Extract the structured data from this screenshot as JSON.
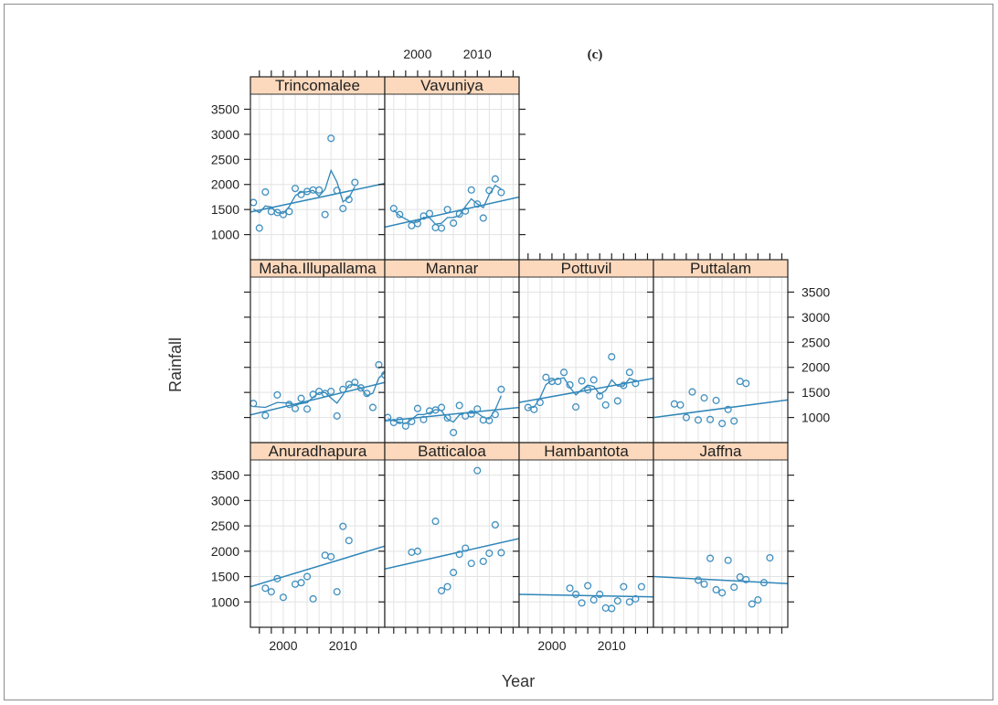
{
  "chart_data": {
    "type": "scatter",
    "figure_label": "(c)",
    "xlabel": "Year",
    "ylabel": "Rainfall",
    "x_ticks": [
      2000,
      2010
    ],
    "y_ticks": [
      1000,
      1500,
      2000,
      2500,
      3000,
      3500
    ],
    "xlim": [
      1994.5,
      2017
    ],
    "ylim": [
      500,
      3800
    ],
    "colors": {
      "points": "#3f8fbf",
      "line": "#2f86b8",
      "strip": "#fcd9bd",
      "grid": "#e3e3e3"
    },
    "panels": [
      {
        "name": "Anuradhapura",
        "points": [
          [
            1997,
            1270
          ],
          [
            1998,
            1200
          ],
          [
            1999,
            1460
          ],
          [
            2000,
            1090
          ],
          [
            2002,
            1350
          ],
          [
            2003,
            1380
          ],
          [
            2004,
            1500
          ],
          [
            2005,
            1060
          ],
          [
            2007,
            1920
          ],
          [
            2008,
            1890
          ],
          [
            2009,
            1200
          ],
          [
            2010,
            2490
          ],
          [
            2011,
            2210
          ]
        ],
        "trend": [
          1300,
          2100
        ]
      },
      {
        "name": "Batticaloa",
        "points": [
          [
            1999,
            1980
          ],
          [
            2000,
            2000
          ],
          [
            2003,
            2590
          ],
          [
            2004,
            1220
          ],
          [
            2005,
            1300
          ],
          [
            2006,
            1580
          ],
          [
            2007,
            1940
          ],
          [
            2008,
            2060
          ],
          [
            2009,
            1760
          ],
          [
            2010,
            3590
          ],
          [
            2011,
            1800
          ],
          [
            2012,
            1960
          ],
          [
            2013,
            2520
          ],
          [
            2014,
            1970
          ]
        ],
        "trend": [
          1650,
          2250
        ]
      },
      {
        "name": "Hambantota",
        "points": [
          [
            2003,
            1270
          ],
          [
            2004,
            1150
          ],
          [
            2005,
            980
          ],
          [
            2006,
            1320
          ],
          [
            2007,
            1040
          ],
          [
            2008,
            1150
          ],
          [
            2009,
            880
          ],
          [
            2010,
            870
          ],
          [
            2011,
            1020
          ],
          [
            2012,
            1300
          ],
          [
            2013,
            1000
          ],
          [
            2014,
            1060
          ],
          [
            2015,
            1300
          ]
        ],
        "trend": [
          1150,
          1100
        ]
      },
      {
        "name": "Jaffna",
        "points": [
          [
            2002,
            1430
          ],
          [
            2003,
            1350
          ],
          [
            2004,
            1860
          ],
          [
            2005,
            1240
          ],
          [
            2006,
            1180
          ],
          [
            2007,
            1820
          ],
          [
            2008,
            1290
          ],
          [
            2009,
            1490
          ],
          [
            2010,
            1440
          ],
          [
            2011,
            960
          ],
          [
            2012,
            1040
          ],
          [
            2013,
            1380
          ],
          [
            2014,
            1870
          ]
        ],
        "trend": [
          1500,
          1360
        ]
      },
      {
        "name": "Maha.Illupallama",
        "points": [
          [
            1995,
            1280
          ],
          [
            1997,
            1040
          ],
          [
            1999,
            1450
          ],
          [
            2001,
            1260
          ],
          [
            2002,
            1180
          ],
          [
            2003,
            1380
          ],
          [
            2004,
            1170
          ],
          [
            2005,
            1460
          ],
          [
            2006,
            1520
          ],
          [
            2007,
            1480
          ],
          [
            2008,
            1520
          ],
          [
            2009,
            1030
          ],
          [
            2010,
            1560
          ],
          [
            2011,
            1660
          ],
          [
            2012,
            1700
          ],
          [
            2013,
            1590
          ],
          [
            2014,
            1480
          ],
          [
            2015,
            1200
          ],
          [
            2016,
            2050
          ],
          [
            2017,
            1850
          ]
        ],
        "trend": [
          1050,
          1700
        ]
      },
      {
        "name": "Mannar",
        "points": [
          [
            1995,
            1000
          ],
          [
            1996,
            900
          ],
          [
            1997,
            940
          ],
          [
            1998,
            830
          ],
          [
            1999,
            920
          ],
          [
            2000,
            1180
          ],
          [
            2001,
            960
          ],
          [
            2002,
            1130
          ],
          [
            2003,
            1150
          ],
          [
            2004,
            1200
          ],
          [
            2005,
            990
          ],
          [
            2006,
            700
          ],
          [
            2007,
            1240
          ],
          [
            2008,
            1030
          ],
          [
            2009,
            1070
          ],
          [
            2010,
            1170
          ],
          [
            2011,
            950
          ],
          [
            2012,
            940
          ],
          [
            2013,
            1060
          ],
          [
            2014,
            1560
          ]
        ],
        "trend": [
          930,
          1200
        ]
      },
      {
        "name": "Pottuvil",
        "points": [
          [
            1996,
            1200
          ],
          [
            1997,
            1160
          ],
          [
            1998,
            1300
          ],
          [
            1999,
            1800
          ],
          [
            2000,
            1720
          ],
          [
            2001,
            1720
          ],
          [
            2002,
            1900
          ],
          [
            2003,
            1650
          ],
          [
            2004,
            1210
          ],
          [
            2005,
            1730
          ],
          [
            2006,
            1550
          ],
          [
            2007,
            1750
          ],
          [
            2008,
            1430
          ],
          [
            2009,
            1250
          ],
          [
            2010,
            2210
          ],
          [
            2011,
            1330
          ],
          [
            2012,
            1640
          ],
          [
            2013,
            1900
          ],
          [
            2014,
            1680
          ]
        ],
        "trend": [
          1300,
          1780
        ]
      },
      {
        "name": "Puttalam",
        "points": [
          [
            1998,
            1270
          ],
          [
            1999,
            1250
          ],
          [
            2000,
            1000
          ],
          [
            2001,
            1510
          ],
          [
            2002,
            950
          ],
          [
            2003,
            1390
          ],
          [
            2004,
            960
          ],
          [
            2005,
            1340
          ],
          [
            2006,
            880
          ],
          [
            2007,
            1160
          ],
          [
            2008,
            930
          ],
          [
            2009,
            1720
          ],
          [
            2010,
            1680
          ]
        ],
        "trend": [
          1000,
          1350
        ]
      },
      {
        "name": "Trincomalee",
        "points": [
          [
            1995,
            1640
          ],
          [
            1996,
            1130
          ],
          [
            1997,
            1850
          ],
          [
            1998,
            1460
          ],
          [
            1999,
            1440
          ],
          [
            2000,
            1400
          ],
          [
            2001,
            1460
          ],
          [
            2002,
            1920
          ],
          [
            2003,
            1800
          ],
          [
            2004,
            1860
          ],
          [
            2005,
            1890
          ],
          [
            2006,
            1890
          ],
          [
            2007,
            1400
          ],
          [
            2008,
            2920
          ],
          [
            2009,
            1880
          ],
          [
            2010,
            1520
          ],
          [
            2011,
            1700
          ],
          [
            2012,
            2040
          ]
        ],
        "trend": [
          1450,
          2020
        ]
      },
      {
        "name": "Vavuniya",
        "points": [
          [
            1996,
            1520
          ],
          [
            1997,
            1400
          ],
          [
            1999,
            1180
          ],
          [
            2000,
            1220
          ],
          [
            2001,
            1370
          ],
          [
            2002,
            1420
          ],
          [
            2003,
            1140
          ],
          [
            2004,
            1130
          ],
          [
            2005,
            1500
          ],
          [
            2006,
            1230
          ],
          [
            2007,
            1410
          ],
          [
            2008,
            1470
          ],
          [
            2009,
            1890
          ],
          [
            2010,
            1610
          ],
          [
            2011,
            1330
          ],
          [
            2012,
            1880
          ],
          [
            2013,
            2110
          ],
          [
            2014,
            1840
          ]
        ],
        "trend": [
          1150,
          1750
        ]
      }
    ]
  }
}
